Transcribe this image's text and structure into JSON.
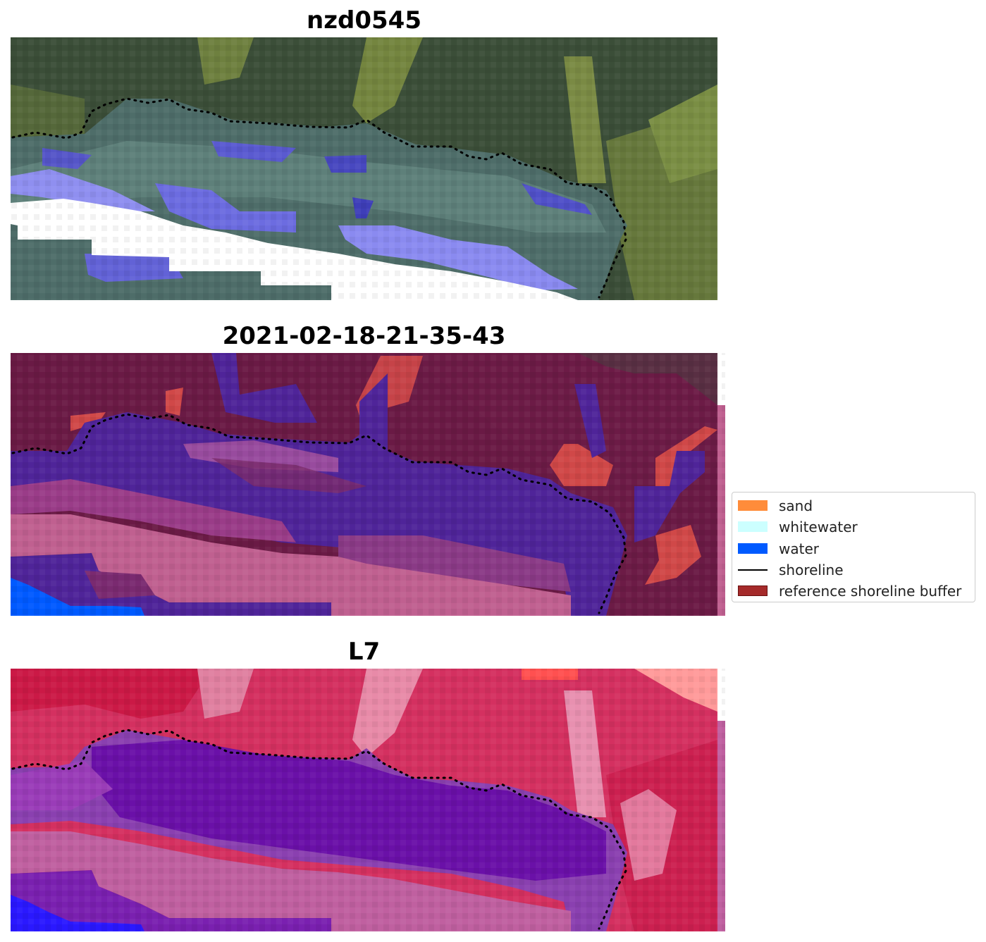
{
  "panels": [
    {
      "title": "nzd0545"
    },
    {
      "title": "2021-02-18-21-35-43"
    },
    {
      "title": "L7"
    }
  ],
  "legend": {
    "items": [
      {
        "label": "sand",
        "color": "#ff8c3a",
        "kind": "patch"
      },
      {
        "label": "whitewater",
        "color": "#ccffff",
        "kind": "patch"
      },
      {
        "label": "water",
        "color": "#005aff",
        "kind": "patch"
      },
      {
        "label": "shoreline",
        "color": "#000000",
        "kind": "line"
      },
      {
        "label": "reference shoreline buffer",
        "color": "#a52a2a",
        "kind": "patch"
      }
    ]
  },
  "colors": {
    "rgb_forest": "#3c4c3a",
    "rgb_veg": "#6b7e3e",
    "rgb_lagoon": "#4c6e6a",
    "rgb_water": "#6a6ad8",
    "class_water": "#4f2499",
    "class_background": "#6a1a45",
    "class_sand_mask": "#c06090",
    "class_buffer_red": "#d04848",
    "mndwi_land": "#d43060",
    "mndwi_water": "#6a10a8",
    "mndwi_sand_mask": "#c060a0"
  }
}
